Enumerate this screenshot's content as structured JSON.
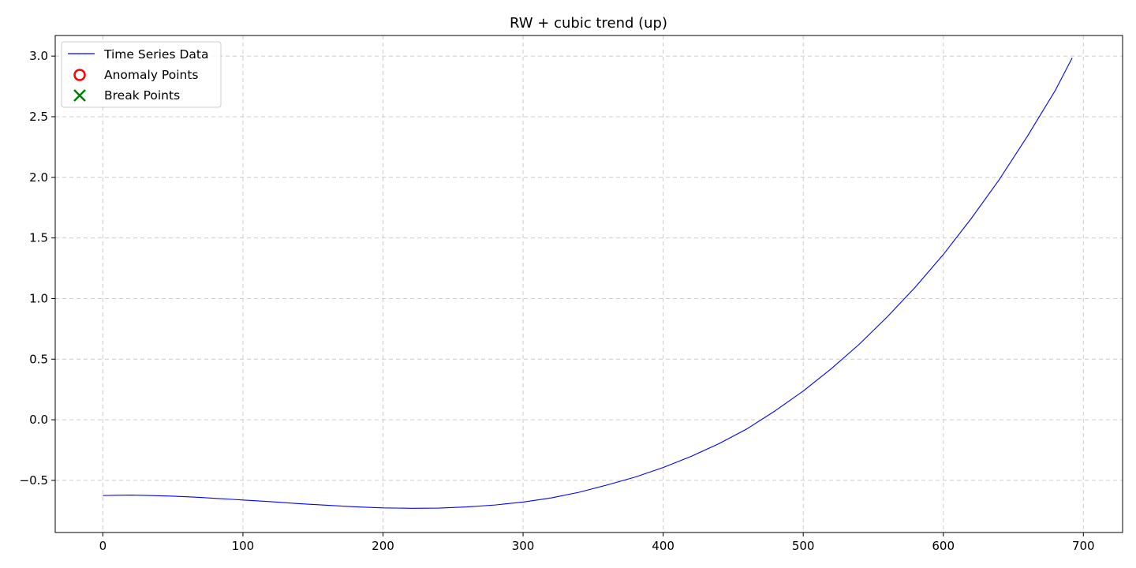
{
  "chart_data": {
    "type": "line",
    "title": "RW + cubic trend (up)",
    "xlabel": "",
    "ylabel": "",
    "xlim": [
      -34,
      728
    ],
    "ylim": [
      -0.93,
      3.17
    ],
    "x_ticks": [
      0,
      100,
      200,
      300,
      400,
      500,
      600,
      700
    ],
    "x_tick_labels": [
      "0",
      "100",
      "200",
      "300",
      "400",
      "500",
      "600",
      "700"
    ],
    "y_ticks": [
      -0.5,
      0.0,
      0.5,
      1.0,
      1.5,
      2.0,
      2.5,
      3.0
    ],
    "y_tick_labels": [
      "−0.5",
      "0.0",
      "0.5",
      "1.0",
      "1.5",
      "2.0",
      "2.5",
      "3.0"
    ],
    "grid": true,
    "legend_position": "top-left",
    "series": [
      {
        "name": "Time Series Data",
        "color": "#0000ff",
        "x": [
          0,
          10,
          20,
          30,
          40,
          50,
          60,
          70,
          80,
          90,
          100,
          120,
          140,
          160,
          180,
          200,
          220,
          240,
          260,
          280,
          300,
          320,
          340,
          360,
          380,
          400,
          420,
          440,
          460,
          480,
          500,
          520,
          540,
          560,
          580,
          600,
          620,
          640,
          660,
          680,
          692
        ],
        "y": [
          -0.625,
          -0.623,
          -0.621,
          -0.624,
          -0.627,
          -0.63,
          -0.635,
          -0.641,
          -0.648,
          -0.655,
          -0.662,
          -0.676,
          -0.692,
          -0.705,
          -0.718,
          -0.727,
          -0.73,
          -0.729,
          -0.719,
          -0.703,
          -0.679,
          -0.645,
          -0.598,
          -0.538,
          -0.473,
          -0.394,
          -0.302,
          -0.196,
          -0.074,
          0.074,
          0.237,
          0.421,
          0.623,
          0.849,
          1.094,
          1.363,
          1.661,
          1.982,
          2.338,
          2.718,
          2.985
        ]
      },
      {
        "name": "Anomaly Points",
        "color": "#ff0000",
        "marker": "circle-open",
        "x": [],
        "y": []
      },
      {
        "name": "Break Points",
        "color": "#008000",
        "marker": "x",
        "x": [],
        "y": []
      }
    ]
  }
}
